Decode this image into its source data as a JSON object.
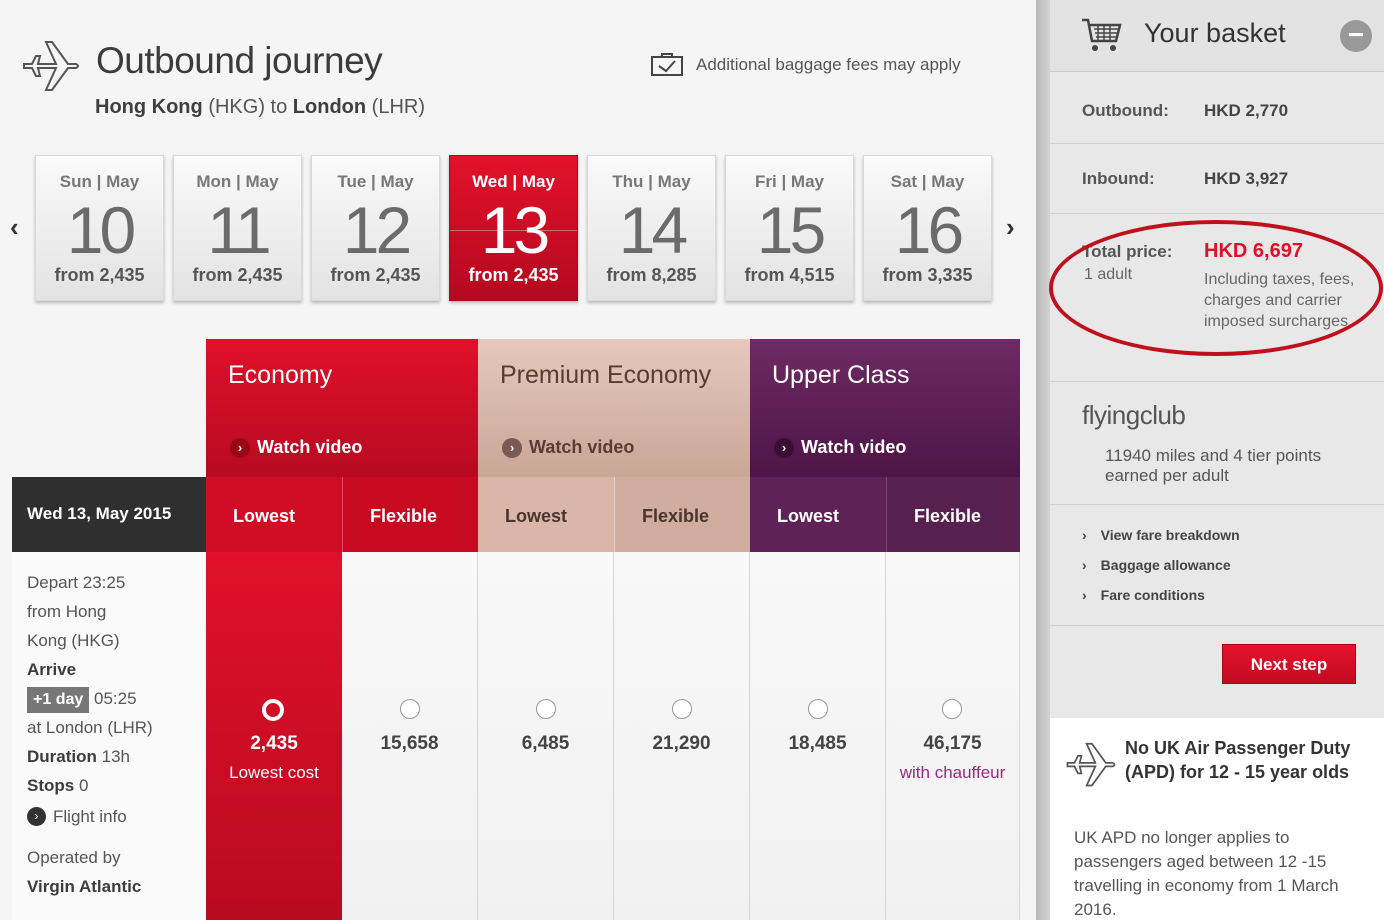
{
  "header": {
    "title": "Outbound journey",
    "route_from": "Hong Kong",
    "route_from_code": "(HKG)",
    "route_to_word": "to",
    "route_to": "London",
    "route_to_code": "(LHR)",
    "baggage_note": "Additional baggage fees may apply"
  },
  "dates": [
    {
      "label": "Sun | May",
      "day": "10",
      "price": "from 2,435"
    },
    {
      "label": "Mon | May",
      "day": "11",
      "price": "from 2,435"
    },
    {
      "label": "Tue | May",
      "day": "12",
      "price": "from 2,435"
    },
    {
      "label": "Wed | May",
      "day": "13",
      "price": "from 2,435",
      "selected": true
    },
    {
      "label": "Thu | May",
      "day": "14",
      "price": "from 8,285"
    },
    {
      "label": "Fri | May",
      "day": "15",
      "price": "from 4,515"
    },
    {
      "label": "Sat | May",
      "day": "16",
      "price": "from 3,335"
    }
  ],
  "cabins": [
    {
      "name": "Economy",
      "video": "Watch video",
      "color": "#d20c24"
    },
    {
      "name": "Premium Economy",
      "video": "Watch video",
      "color": "#d9b6a7"
    },
    {
      "name": "Upper Class",
      "video": "Watch video",
      "color": "#5f2257"
    }
  ],
  "fare_types": [
    "Lowest",
    "Flexible",
    "Lowest",
    "Flexible",
    "Lowest",
    "Flexible"
  ],
  "flight": {
    "date": "Wed 13, May 2015",
    "depart_label": "Depart",
    "depart_time": "23:25",
    "depart_from": "from Hong Kong (HKG)",
    "arrive_label": "Arrive",
    "plus_day": "+1 day",
    "arrive_time": "05:25",
    "arrive_at": "at London (LHR)",
    "duration_label": "Duration",
    "duration": "13h",
    "stops_label": "Stops",
    "stops": "0",
    "info_link": "Flight info",
    "operated_label": "Operated by",
    "operator": "Virgin Atlantic"
  },
  "fares": [
    {
      "price": "2,435",
      "note": "Lowest cost",
      "selected": true
    },
    {
      "price": "15,658",
      "note": ""
    },
    {
      "price": "6,485",
      "note": ""
    },
    {
      "price": "21,290",
      "note": ""
    },
    {
      "price": "18,485",
      "note": ""
    },
    {
      "price": "46,175",
      "note": "with chauffeur"
    }
  ],
  "basket": {
    "title": "Your basket",
    "outbound_label": "Outbound:",
    "outbound_value": "HKD 2,770",
    "inbound_label": "Inbound:",
    "inbound_value": "HKD 3,927",
    "total_label": "Total price:",
    "total_pax": "1 adult",
    "total_value": "HKD 6,697",
    "total_note": "Including taxes, fees, charges and carrier imposed surcharges",
    "flyingclub_title": "flyingclub",
    "flyingclub_text": "11940 miles and 4 tier points earned per adult",
    "links": [
      "View fare breakdown",
      "Baggage allowance",
      "Fare conditions"
    ],
    "next_button": "Next step"
  },
  "promo": {
    "heading": "No UK Air Passenger Duty (APD) for 12 - 15 year olds",
    "body": "UK APD no longer applies to passengers aged between 12 -15 travelling in economy from 1 March 2016."
  }
}
